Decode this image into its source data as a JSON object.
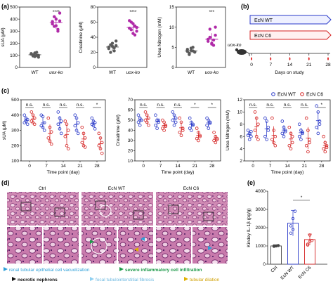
{
  "panel_labels": {
    "a": "(a)",
    "b": "(b)",
    "c": "(c)",
    "d": "(d)",
    "e": "(e)"
  },
  "colors": {
    "wt": "#5a5a5a",
    "ko": "#b02aa8",
    "ecn_wt": "#2838c8",
    "ecn_c6": "#d42020",
    "ecn_wt_bar": "#2838c8",
    "ecn_c6_bar": "#d42020",
    "wt_bar": "#444444",
    "tissue_bg": "#c77aa6",
    "tissue_dark": "#8a3c78",
    "legend_vacuolization": "#2fa0d8",
    "legend_inflammatory": "#1e9a4a",
    "legend_necrotic": "#111111",
    "legend_fibrosis": "#8fd0f0",
    "legend_dilation": "#e0b000"
  },
  "chart_data": [
    {
      "id": "a1",
      "type": "scatter",
      "categories": [
        "WT",
        "uox-ko"
      ],
      "ylabel": "sUA (μM)",
      "ylim": [
        0,
        500
      ],
      "yticks": [
        0,
        100,
        200,
        300,
        400,
        500
      ],
      "series": [
        {
          "values": [
            110,
            95,
            120,
            100,
            85,
            115,
            105,
            90,
            125,
            100
          ]
        },
        {
          "values": [
            380,
            420,
            345,
            300,
            450,
            360,
            340,
            400,
            315,
            385
          ]
        }
      ],
      "means": [
        105,
        370
      ],
      "significance": "****"
    },
    {
      "id": "a2",
      "type": "scatter",
      "categories": [
        "WT",
        "uox-ko"
      ],
      "ylabel": "Creatinine (μM)",
      "ylim": [
        0,
        80
      ],
      "yticks": [
        0,
        20,
        40,
        60,
        80
      ],
      "series": [
        {
          "values": [
            25,
            30,
            28,
            22,
            35,
            27,
            20,
            32,
            26,
            29
          ]
        },
        {
          "values": [
            52,
            60,
            45,
            55,
            48,
            62,
            50,
            58,
            43,
            53
          ]
        }
      ],
      "means": [
        27,
        53
      ],
      "significance": "****"
    },
    {
      "id": "a3",
      "type": "scatter",
      "categories": [
        "WT",
        "uox-ko"
      ],
      "ylabel": "Urea Nitrogen (mM)",
      "ylim": [
        0,
        15
      ],
      "yticks": [
        0,
        5,
        10,
        15
      ],
      "series": [
        {
          "values": [
            4,
            3.5,
            4.2,
            5,
            3.8,
            4.5,
            3.2,
            4.8,
            4.1,
            3.9
          ]
        },
        {
          "values": [
            7,
            9.5,
            6,
            5.5,
            8,
            6.5,
            7.5,
            5.8,
            6.8,
            10
          ]
        }
      ],
      "means": [
        4.1,
        7
      ],
      "significance": "***"
    },
    {
      "id": "c1",
      "type": "scatter",
      "x": [
        0,
        7,
        14,
        21,
        28
      ],
      "xlabel": "Time point (day)",
      "ylabel": "sUA (μM)",
      "ylim": [
        100,
        500
      ],
      "yticks": [
        100,
        200,
        300,
        400,
        500
      ],
      "series": [
        {
          "name": "EcN WT",
          "values": [
            [
              400,
              380,
              370,
              350,
              360,
              340
            ],
            [
              400,
              390,
              350,
              330,
              320,
              300
            ],
            [
              420,
              380,
              360,
              340,
              310,
              280
            ],
            [
              400,
              380,
              350,
              330,
              300,
              280
            ],
            [
              380,
              360,
              350,
              340,
              330,
              310
            ]
          ]
        },
        {
          "name": "EcN C6",
          "values": [
            [
              420,
              400,
              380,
              360,
              350,
              340
            ],
            [
              380,
              320,
              290,
              250,
              230,
              210
            ],
            [
              360,
              340,
              300,
              260,
              200,
              180
            ],
            [
              320,
              280,
              250,
              220,
              200,
              190
            ],
            [
              280,
              250,
              220,
              200,
              180,
              150
            ]
          ]
        }
      ],
      "significance": [
        "n.s.",
        "n.s.",
        "n.s.",
        "n.s.",
        "*"
      ]
    },
    {
      "id": "c2",
      "type": "scatter",
      "x": [
        0,
        7,
        14,
        21,
        28
      ],
      "xlabel": "Time point (day)",
      "ylabel": "Creatinine (μM)",
      "ylim": [
        10,
        70
      ],
      "yticks": [
        10,
        20,
        30,
        40,
        50,
        60,
        70
      ],
      "series": [
        {
          "name": "EcN WT",
          "values": [
            [
              55,
              52,
              50,
              48,
              45,
              50
            ],
            [
              55,
              50,
              48,
              45,
              42,
              50
            ],
            [
              58,
              55,
              52,
              50,
              45,
              48
            ],
            [
              52,
              48,
              45,
              42,
              40,
              46
            ],
            [
              52,
              50,
              48,
              45,
              42,
              47
            ]
          ]
        },
        {
          "name": "EcN C6",
          "values": [
            [
              58,
              55,
              52,
              50,
              48,
              45
            ],
            [
              50,
              48,
              45,
              42,
              40,
              44
            ],
            [
              52,
              48,
              42,
              38,
              35,
              40
            ],
            [
              42,
              38,
              35,
              32,
              30,
              34
            ],
            [
              38,
              34,
              32,
              30,
              28,
              31
            ]
          ]
        }
      ],
      "significance": [
        "n.s.",
        "n.s.",
        "n.s.",
        "*",
        "*"
      ]
    },
    {
      "id": "c3",
      "type": "scatter",
      "x": [
        0,
        7,
        14,
        21,
        28
      ],
      "xlabel": "Time point (day)",
      "ylabel": "Urea Nitrogen (mM)",
      "ylim": [
        2,
        12
      ],
      "yticks": [
        2,
        4,
        6,
        8,
        10,
        12
      ],
      "series": [
        {
          "name": "EcN WT",
          "values": [
            [
              7,
              6.5,
              6,
              6.2,
              5.5,
              6.8
            ],
            [
              9,
              8.5,
              7,
              6,
              5.5,
              7.5
            ],
            [
              8.5,
              7.5,
              7,
              6.5,
              6,
              6.8
            ],
            [
              8,
              7,
              6.5,
              6,
              5.5,
              6.7
            ],
            [
              11,
              10,
              8,
              7.5,
              6.5,
              8.5
            ]
          ]
        },
        {
          "name": "EcN C6",
          "values": [
            [
              10,
              9,
              8,
              7,
              6,
              5.5
            ],
            [
              9,
              7,
              6,
              5.5,
              5,
              4.5
            ],
            [
              7.5,
              6.5,
              5,
              4.5,
              4,
              6
            ],
            [
              9,
              7,
              5.5,
              4.5,
              3.5,
              5
            ],
            [
              6,
              5,
              4.5,
              4,
              3.5,
              4.2
            ]
          ]
        }
      ],
      "significance": [
        "n.s.",
        "n.s.",
        "n.s.",
        "n.s.",
        "*"
      ]
    },
    {
      "id": "e",
      "type": "bar",
      "categories": [
        "Ctrl",
        "EcN WT",
        "EcN C6"
      ],
      "values": [
        1000,
        2250,
        1350
      ],
      "errors": [
        50,
        700,
        300
      ],
      "points": [
        [
          980,
          1000,
          1020,
          1000
        ],
        [
          1700,
          2500,
          2900,
          2100,
          1900
        ],
        [
          1100,
          1600,
          1300,
          1050,
          1250
        ]
      ],
      "ylabel": "Kindey IL-1β (pg/g)",
      "ylim": [
        0,
        4000
      ],
      "yticks": [
        0,
        1000,
        2000,
        3000,
        4000
      ],
      "significance": "*"
    }
  ],
  "panel_b": {
    "bar_wt": "EcN WT",
    "bar_c6": "EcN C6",
    "mouse_label": "uox-ko",
    "days": [
      "0",
      "7",
      "14",
      "21",
      "28"
    ],
    "xlabel": "Days on study"
  },
  "panel_c_legend": {
    "wt": "EcN WT",
    "c6": "EcN C6"
  },
  "panel_d": {
    "titles": [
      "Ctrl",
      "EcN WT",
      "EcN C6"
    ],
    "legend": {
      "vacuolization": "renal tubular epithelial cell vacuolization",
      "inflammatory": "severe inflammatory cell infiltration",
      "necrotic": "necrotic nephrons",
      "fibrosis": "focal tubulointerstitial fibrosis",
      "dilation": "tubular dilation"
    }
  }
}
